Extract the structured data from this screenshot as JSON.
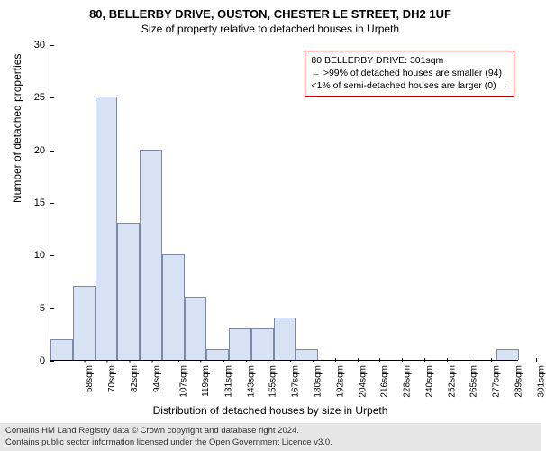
{
  "title_main": "80, BELLERBY DRIVE, OUSTON, CHESTER LE STREET, DH2 1UF",
  "title_sub": "Size of property relative to detached houses in Urpeth",
  "ylabel": "Number of detached properties",
  "xlabel": "Distribution of detached houses by size in Urpeth",
  "chart": {
    "type": "histogram",
    "bar_fill": "#d7e2f4",
    "bar_stroke": "#7a8aa8",
    "background_color": "#ffffff",
    "ylim": [
      0,
      30
    ],
    "ytick_step": 5,
    "yticks": [
      0,
      5,
      10,
      15,
      20,
      25,
      30
    ],
    "xticks": [
      "58sqm",
      "70sqm",
      "82sqm",
      "94sqm",
      "107sqm",
      "119sqm",
      "131sqm",
      "143sqm",
      "155sqm",
      "167sqm",
      "180sqm",
      "192sqm",
      "204sqm",
      "216sqm",
      "228sqm",
      "240sqm",
      "252sqm",
      "265sqm",
      "277sqm",
      "289sqm",
      "301sqm"
    ],
    "values": [
      2,
      7,
      25,
      13,
      20,
      10,
      6,
      1,
      3,
      3,
      4,
      1,
      0,
      0,
      0,
      0,
      0,
      0,
      0,
      0,
      1
    ]
  },
  "annotation": {
    "border_color": "#cc0000",
    "line1": "80 BELLERBY DRIVE: 301sqm",
    "line2": "← >99% of detached houses are smaller (94)",
    "line3": "<1% of semi-detached houses are larger (0) →"
  },
  "footer": {
    "line1": "Contains HM Land Registry data © Crown copyright and database right 2024.",
    "line2": "Contains public sector information licensed under the Open Government Licence v3.0."
  }
}
